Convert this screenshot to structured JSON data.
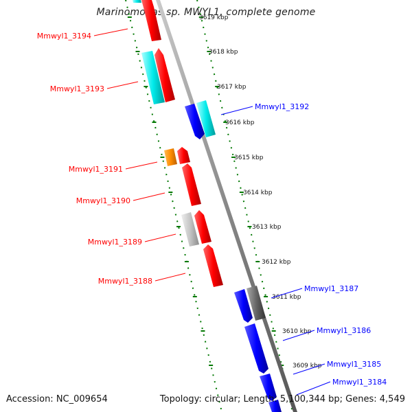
{
  "title": "Marinomonas sp. MWYL1, complete genome",
  "accession_text": "Accession: NC_009654",
  "topology_text": "Topology: circular; Length: 5,100,344 bp; Genes: 4,549",
  "kbp_ticks": [
    {
      "label": "3619 kbp",
      "pos": 3619
    },
    {
      "label": "3618 kbp",
      "pos": 3618
    },
    {
      "label": "3617 kbp",
      "pos": 3617
    },
    {
      "label": "3616 kbp",
      "pos": 3616
    },
    {
      "label": "3615 kbp",
      "pos": 3615
    },
    {
      "label": "3614 kbp",
      "pos": 3614
    },
    {
      "label": "3613 kbp",
      "pos": 3613
    },
    {
      "label": "3612 kbp",
      "pos": 3612
    },
    {
      "label": "3611 kbp",
      "pos": 3611
    },
    {
      "label": "3610 kbp",
      "pos": 3610
    },
    {
      "label": "3609 kbp",
      "pos": 3609
    }
  ],
  "genes": [
    {
      "label": "Mmwyl1_3194",
      "strand": "left",
      "color": "#ff0000"
    },
    {
      "label": "Mmwyl1_3193",
      "strand": "left",
      "color": "#ff0000"
    },
    {
      "label": "Mmwyl1_3192",
      "strand": "right",
      "color": "#0000ff"
    },
    {
      "label": "Mmwyl1_3191",
      "strand": "left",
      "color": "#ff0000"
    },
    {
      "label": "Mmwyl1_3190",
      "strand": "left",
      "color": "#ff0000"
    },
    {
      "label": "Mmwyl1_3189",
      "strand": "left",
      "color": "#ff0000"
    },
    {
      "label": "Mmwyl1_3188",
      "strand": "left",
      "color": "#ff0000"
    },
    {
      "label": "Mmwyl1_3187",
      "strand": "right",
      "color": "#0000ff"
    },
    {
      "label": "Mmwyl1_3186",
      "strand": "right",
      "color": "#0000ff"
    },
    {
      "label": "Mmwyl1_3185",
      "strand": "right",
      "color": "#0000ff"
    },
    {
      "label": "Mmwyl1_3184",
      "strand": "right",
      "color": "#0000ff"
    }
  ],
  "colors": {
    "forward_gene": "#ff0000",
    "reverse_gene": "#0000ff",
    "cds_feature": "#00e5e5",
    "orange_feature": "#ff8c00",
    "gray_feature": "#c0c0c0",
    "dark_feature": "#666666",
    "backbone": "#888888",
    "dots": "#007700"
  }
}
